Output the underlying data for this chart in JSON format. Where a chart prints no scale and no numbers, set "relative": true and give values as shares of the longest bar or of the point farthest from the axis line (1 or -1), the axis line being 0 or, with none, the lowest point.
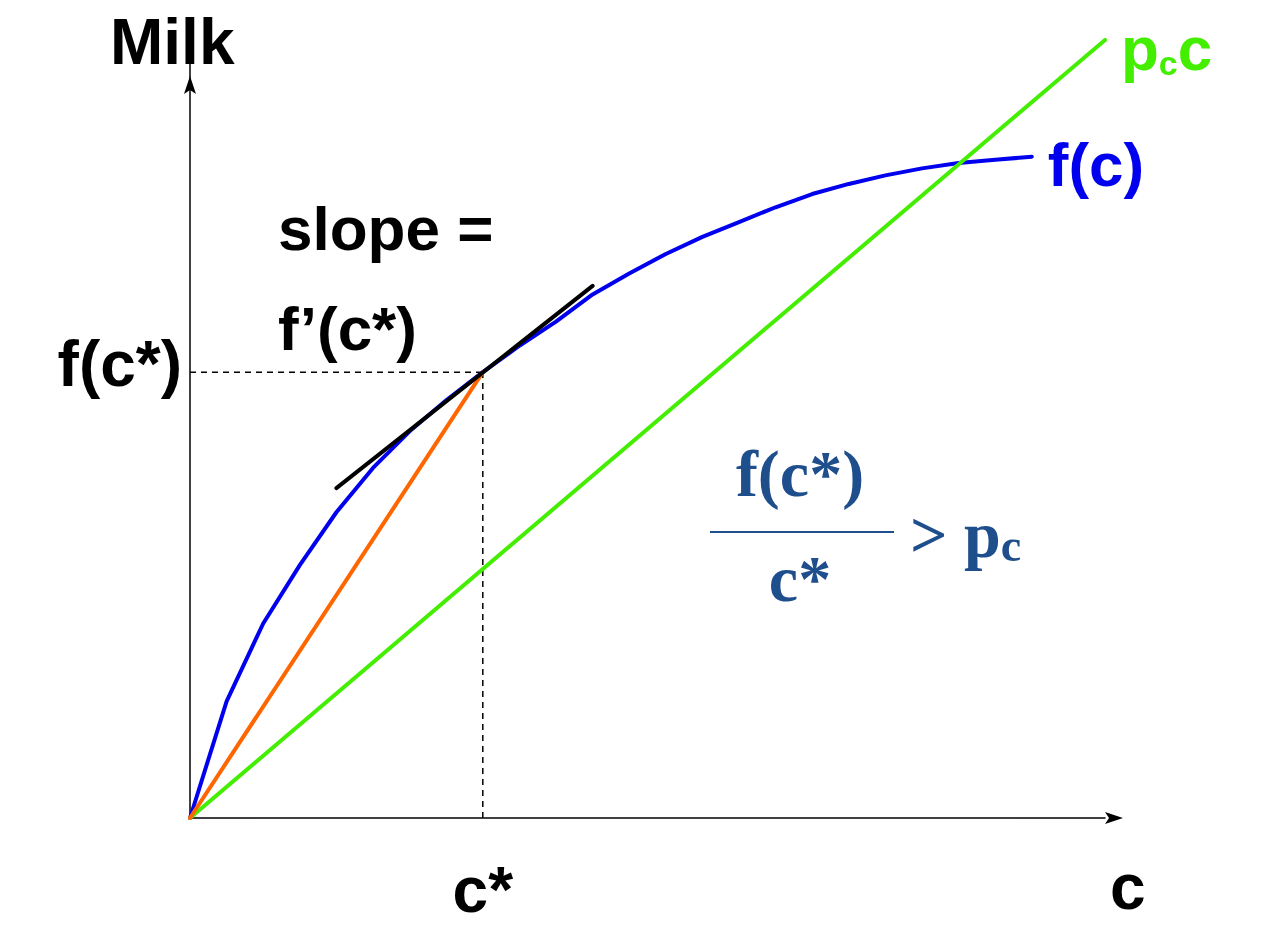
{
  "chart_data": {
    "type": "line",
    "relative": true,
    "ylabel": "Milk",
    "xlabel": "c",
    "legend": false,
    "grid": false,
    "marker": "none",
    "categories": [
      null,
      null,
      null,
      null,
      null,
      null,
      null,
      null,
      null,
      null,
      null,
      null,
      null,
      null,
      null,
      null,
      null,
      null,
      null,
      null,
      null,
      null,
      null,
      null,
      null,
      null
    ],
    "series": [
      {
        "name": "f(c)",
        "color": "#0000ee",
        "values": [
          0,
          0.15,
          0.25,
          0.325,
          0.393,
          0.45,
          0.497,
          0.537,
          0.573,
          0.607,
          0.638,
          0.673,
          0.7,
          0.725,
          0.747,
          0.766,
          0.785,
          0.802,
          0.815,
          0.826,
          0.835,
          0.842,
          0.846,
          0.85,
          null,
          null
        ]
      },
      {
        "name": "p$_{c}$c",
        "color": "#44ee00",
        "values": [
          0,
          null,
          null,
          null,
          null,
          null,
          null,
          null,
          null,
          null,
          null,
          null,
          null,
          null,
          null,
          null,
          null,
          null,
          null,
          null,
          null,
          null,
          null,
          null,
          null,
          1
        ]
      },
      {
        "color": "#ff6600",
        "values": [
          0,
          null,
          null,
          null,
          null,
          null,
          null,
          null,
          0.573,
          null,
          null,
          null,
          null,
          null,
          null,
          null,
          null,
          null,
          null,
          null,
          null,
          null,
          null,
          null,
          null,
          null
        ]
      },
      {
        "color": "#000000",
        "values": [
          null,
          null,
          null,
          null,
          0.424,
          null,
          null,
          null,
          null,
          null,
          null,
          0.684,
          null,
          null,
          null,
          null,
          null,
          null,
          null,
          null,
          null,
          null,
          null,
          null,
          null,
          null
        ]
      }
    ],
    "ref_lines": [
      {
        "axis": "y",
        "value": 0.573,
        "label": "f(c*)",
        "color": "#000000",
        "line_style": "dashed"
      }
    ],
    "annotations": [
      "c*",
      "slope =\nf’(c*)",
      "f(c*)\nc* > p$_{c}$"
    ]
  }
}
